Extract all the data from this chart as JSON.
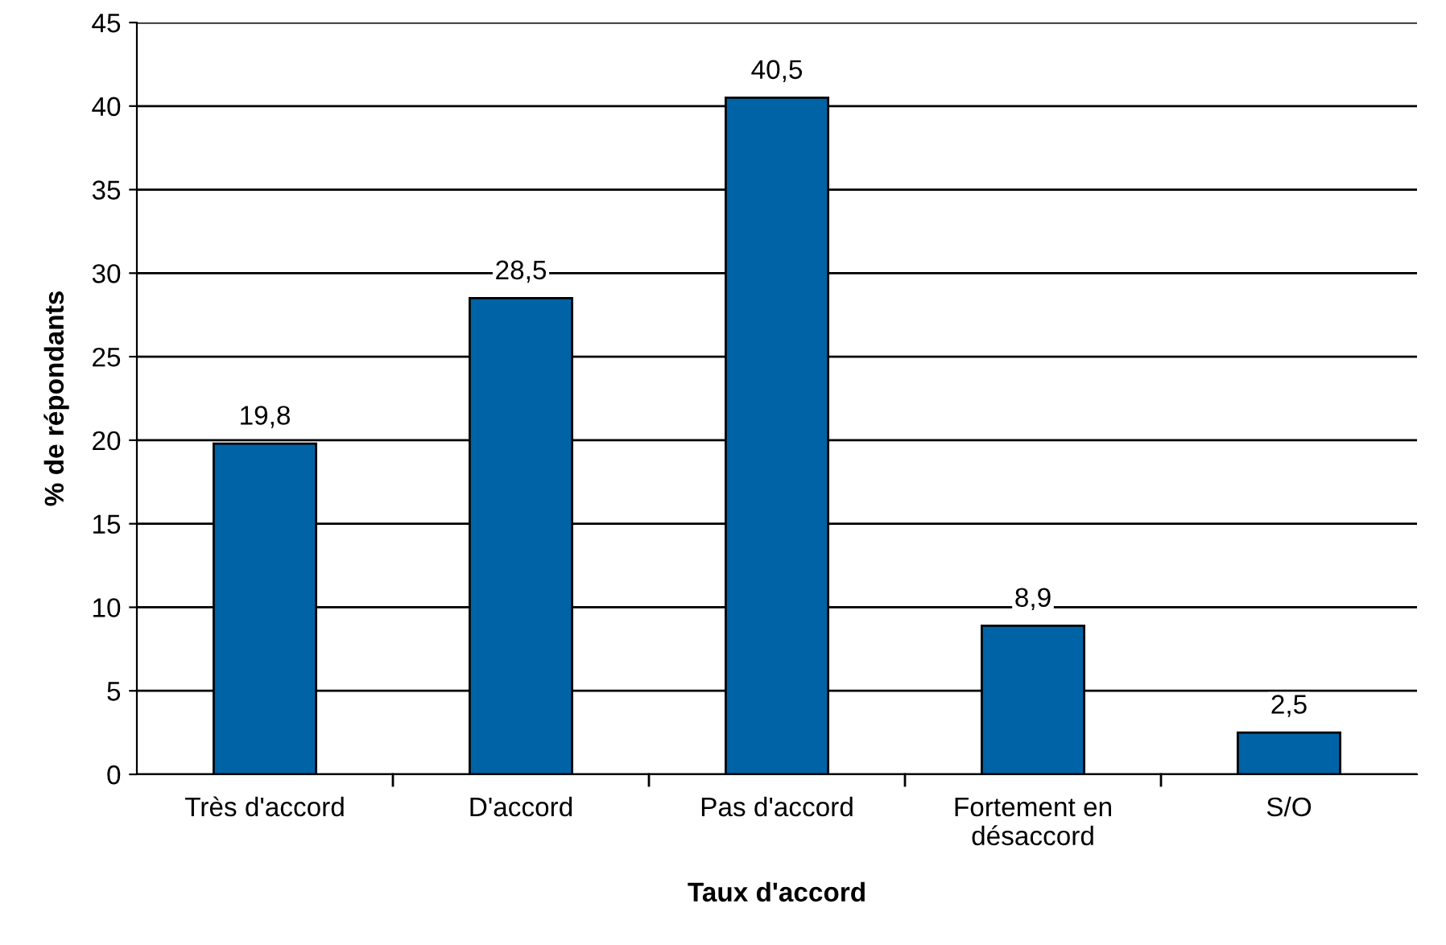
{
  "chart_data": {
    "type": "bar",
    "xlabel": "Taux d'accord",
    "ylabel": "% de répondants",
    "categories": [
      "Très d'accord",
      "D'accord",
      "Pas d'accord",
      "Fortement en\ndésaccord",
      "S/O"
    ],
    "values": [
      19.8,
      28.5,
      40.5,
      8.9,
      2.5
    ],
    "value_labels": [
      "19,8",
      "28,5",
      "40,5",
      "8,9",
      "2,5"
    ],
    "color": "#0063a6",
    "ylim": [
      0,
      45
    ],
    "yticks": [
      0,
      5,
      10,
      15,
      20,
      25,
      30,
      35,
      40,
      45
    ],
    "grid": "y",
    "legend": false
  }
}
